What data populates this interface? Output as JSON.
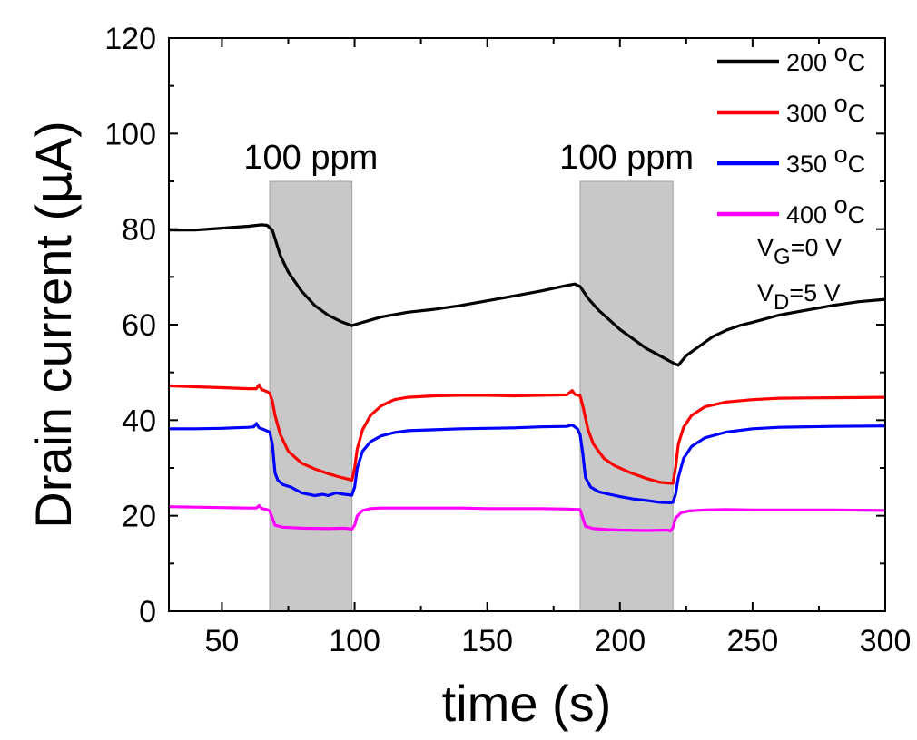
{
  "chart_data": {
    "type": "line",
    "xlabel": "time (s)",
    "ylabel_main": "Drain current (",
    "ylabel_mu": "μ",
    "ylabel_unit": "A)",
    "xlim": [
      30,
      300
    ],
    "ylim": [
      0,
      120
    ],
    "xticks": [
      50,
      100,
      150,
      200,
      250,
      300
    ],
    "yticks": [
      0,
      20,
      40,
      60,
      80,
      100,
      120
    ],
    "grid": false,
    "legend_position": "top-right",
    "exposure_windows": [
      {
        "label": "100 ppm",
        "start": 68,
        "end": 99
      },
      {
        "label": "100 ppm",
        "start": 185,
        "end": 220
      }
    ],
    "conditions": [
      {
        "prefix": "V",
        "sub": "G",
        "suffix": "=0 V"
      },
      {
        "prefix": "V",
        "sub": "D",
        "suffix": "=5 V"
      }
    ],
    "series": [
      {
        "name": "200",
        "unit_sup": "o",
        "unit": "C",
        "color": "#000000",
        "points": [
          [
            30,
            79.8
          ],
          [
            40,
            79.8
          ],
          [
            50,
            80.2
          ],
          [
            60,
            80.6
          ],
          [
            65,
            80.9
          ],
          [
            67,
            80.8
          ],
          [
            69,
            79.8
          ],
          [
            72,
            74.5
          ],
          [
            75,
            71.0
          ],
          [
            80,
            67.0
          ],
          [
            85,
            64.0
          ],
          [
            90,
            62.0
          ],
          [
            95,
            60.6
          ],
          [
            99,
            59.8
          ],
          [
            100,
            60.0
          ],
          [
            105,
            60.8
          ],
          [
            110,
            61.6
          ],
          [
            120,
            62.6
          ],
          [
            130,
            63.2
          ],
          [
            140,
            64.0
          ],
          [
            150,
            65.0
          ],
          [
            160,
            66.0
          ],
          [
            170,
            67.0
          ],
          [
            180,
            68.2
          ],
          [
            183,
            68.5
          ],
          [
            185,
            68.0
          ],
          [
            188,
            65.5
          ],
          [
            192,
            63.0
          ],
          [
            196,
            61.0
          ],
          [
            200,
            59.0
          ],
          [
            205,
            57.0
          ],
          [
            210,
            55.0
          ],
          [
            215,
            53.5
          ],
          [
            220,
            52.0
          ],
          [
            222,
            51.5
          ],
          [
            225,
            53.5
          ],
          [
            230,
            55.5
          ],
          [
            235,
            57.5
          ],
          [
            240,
            58.8
          ],
          [
            245,
            59.8
          ],
          [
            250,
            60.5
          ],
          [
            260,
            62.0
          ],
          [
            270,
            63.0
          ],
          [
            280,
            64.0
          ],
          [
            290,
            64.8
          ],
          [
            300,
            65.3
          ]
        ]
      },
      {
        "name": "300",
        "unit_sup": "o",
        "unit": "C",
        "color": "#ff0000",
        "points": [
          [
            30,
            47.2
          ],
          [
            40,
            47.0
          ],
          [
            50,
            46.8
          ],
          [
            60,
            46.6
          ],
          [
            63,
            46.6
          ],
          [
            64,
            47.4
          ],
          [
            65,
            46.4
          ],
          [
            67,
            46.0
          ],
          [
            68,
            45.6
          ],
          [
            69,
            44.0
          ],
          [
            70,
            41.0
          ],
          [
            72,
            37.0
          ],
          [
            75,
            33.5
          ],
          [
            80,
            31.0
          ],
          [
            85,
            29.8
          ],
          [
            90,
            28.8
          ],
          [
            95,
            28.0
          ],
          [
            98,
            27.6
          ],
          [
            99,
            27.4
          ],
          [
            100,
            30.0
          ],
          [
            101,
            34.0
          ],
          [
            103,
            38.0
          ],
          [
            106,
            41.0
          ],
          [
            110,
            43.0
          ],
          [
            115,
            44.3
          ],
          [
            120,
            44.8
          ],
          [
            130,
            45.1
          ],
          [
            140,
            45.2
          ],
          [
            150,
            45.2
          ],
          [
            160,
            45.1
          ],
          [
            170,
            45.2
          ],
          [
            180,
            45.3
          ],
          [
            182,
            46.2
          ],
          [
            183,
            45.4
          ],
          [
            185,
            45.1
          ],
          [
            186,
            43.0
          ],
          [
            188,
            38.0
          ],
          [
            190,
            35.0
          ],
          [
            194,
            32.0
          ],
          [
            198,
            30.5
          ],
          [
            204,
            29.0
          ],
          [
            210,
            27.8
          ],
          [
            215,
            27.0
          ],
          [
            219,
            26.8
          ],
          [
            220,
            26.8
          ],
          [
            221,
            30.0
          ],
          [
            222,
            35.0
          ],
          [
            224,
            38.5
          ],
          [
            227,
            41.0
          ],
          [
            232,
            42.8
          ],
          [
            240,
            43.8
          ],
          [
            250,
            44.3
          ],
          [
            260,
            44.6
          ],
          [
            280,
            44.7
          ],
          [
            300,
            44.8
          ]
        ]
      },
      {
        "name": "350",
        "unit_sup": "o",
        "unit": "C",
        "color": "#0000ff",
        "points": [
          [
            30,
            38.2
          ],
          [
            40,
            38.2
          ],
          [
            50,
            38.3
          ],
          [
            60,
            38.5
          ],
          [
            62,
            38.6
          ],
          [
            63,
            39.3
          ],
          [
            64,
            38.4
          ],
          [
            66,
            38.0
          ],
          [
            68,
            37.5
          ],
          [
            69,
            35.0
          ],
          [
            70,
            29.0
          ],
          [
            71,
            27.5
          ],
          [
            73,
            26.5
          ],
          [
            76,
            26.0
          ],
          [
            80,
            24.8
          ],
          [
            85,
            24.2
          ],
          [
            88,
            24.5
          ],
          [
            90,
            24.2
          ],
          [
            93,
            24.8
          ],
          [
            96,
            24.5
          ],
          [
            99,
            24.3
          ],
          [
            100,
            26.0
          ],
          [
            101,
            30.0
          ],
          [
            103,
            33.5
          ],
          [
            106,
            35.5
          ],
          [
            110,
            36.7
          ],
          [
            115,
            37.4
          ],
          [
            120,
            37.8
          ],
          [
            130,
            38.0
          ],
          [
            140,
            38.2
          ],
          [
            150,
            38.3
          ],
          [
            160,
            38.4
          ],
          [
            170,
            38.6
          ],
          [
            180,
            38.7
          ],
          [
            182,
            39.0
          ],
          [
            184,
            38.2
          ],
          [
            185,
            37.0
          ],
          [
            186,
            33.0
          ],
          [
            187,
            28.0
          ],
          [
            189,
            26.0
          ],
          [
            192,
            25.0
          ],
          [
            196,
            24.5
          ],
          [
            200,
            24.0
          ],
          [
            205,
            23.5
          ],
          [
            210,
            23.2
          ],
          [
            215,
            22.8
          ],
          [
            219,
            22.7
          ],
          [
            220,
            22.8
          ],
          [
            221,
            24.5
          ],
          [
            222,
            28.0
          ],
          [
            224,
            32.0
          ],
          [
            227,
            34.5
          ],
          [
            232,
            36.3
          ],
          [
            240,
            37.5
          ],
          [
            250,
            38.2
          ],
          [
            260,
            38.5
          ],
          [
            280,
            38.7
          ],
          [
            300,
            38.8
          ]
        ]
      },
      {
        "name": "400",
        "unit_sup": "o",
        "unit": "C",
        "color": "#ff00ff",
        "points": [
          [
            30,
            21.9
          ],
          [
            40,
            21.8
          ],
          [
            50,
            21.7
          ],
          [
            60,
            21.6
          ],
          [
            63,
            21.6
          ],
          [
            64,
            22.1
          ],
          [
            65,
            21.5
          ],
          [
            67,
            21.3
          ],
          [
            68,
            21.0
          ],
          [
            69,
            19.5
          ],
          [
            70,
            18.0
          ],
          [
            73,
            17.6
          ],
          [
            80,
            17.4
          ],
          [
            90,
            17.3
          ],
          [
            96,
            17.4
          ],
          [
            99,
            17.2
          ],
          [
            100,
            18.0
          ],
          [
            101,
            20.0
          ],
          [
            103,
            21.1
          ],
          [
            106,
            21.5
          ],
          [
            110,
            21.6
          ],
          [
            120,
            21.6
          ],
          [
            130,
            21.6
          ],
          [
            140,
            21.6
          ],
          [
            150,
            21.5
          ],
          [
            160,
            21.5
          ],
          [
            170,
            21.5
          ],
          [
            180,
            21.4
          ],
          [
            185,
            21.3
          ],
          [
            186,
            19.5
          ],
          [
            187,
            17.8
          ],
          [
            190,
            17.3
          ],
          [
            195,
            17.1
          ],
          [
            200,
            17.0
          ],
          [
            210,
            16.9
          ],
          [
            218,
            17.0
          ],
          [
            219,
            16.8
          ],
          [
            220,
            17.5
          ],
          [
            221,
            19.5
          ],
          [
            223,
            20.6
          ],
          [
            226,
            21.0
          ],
          [
            232,
            21.2
          ],
          [
            240,
            21.3
          ],
          [
            250,
            21.2
          ],
          [
            260,
            21.2
          ],
          [
            280,
            21.2
          ],
          [
            300,
            21.1
          ]
        ]
      }
    ]
  }
}
